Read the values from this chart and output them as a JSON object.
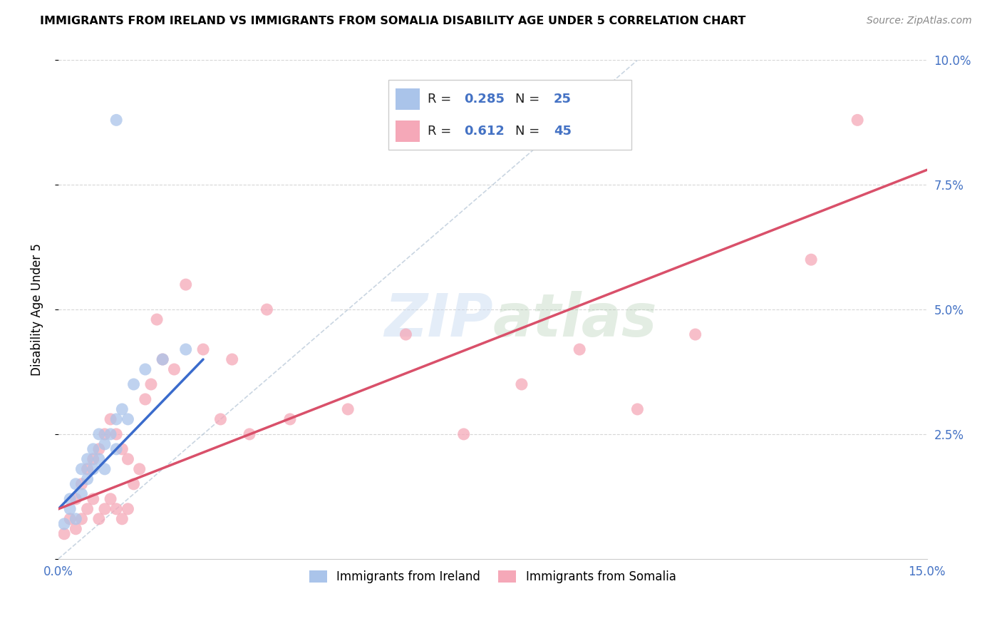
{
  "title": "IMMIGRANTS FROM IRELAND VS IMMIGRANTS FROM SOMALIA DISABILITY AGE UNDER 5 CORRELATION CHART",
  "source": "Source: ZipAtlas.com",
  "ylabel": "Disability Age Under 5",
  "xlim": [
    0.0,
    0.15
  ],
  "ylim": [
    0.0,
    0.1
  ],
  "xtick_vals": [
    0.0,
    0.03,
    0.06,
    0.09,
    0.12,
    0.15
  ],
  "xtick_labels": [
    "0.0%",
    "",
    "",
    "",
    "",
    "15.0%"
  ],
  "ytick_vals": [
    0.0,
    0.025,
    0.05,
    0.075,
    0.1
  ],
  "ytick_labels_right": [
    "",
    "2.5%",
    "5.0%",
    "7.5%",
    "10.0%"
  ],
  "ireland_R": 0.285,
  "ireland_N": 25,
  "somalia_R": 0.612,
  "somalia_N": 45,
  "ireland_color": "#aac4ea",
  "somalia_color": "#f5a8b8",
  "ireland_line_color": "#3a6bcc",
  "somalia_line_color": "#d9506a",
  "diagonal_color": "#b8c8d8",
  "ireland_x": [
    0.001,
    0.002,
    0.002,
    0.003,
    0.003,
    0.004,
    0.004,
    0.005,
    0.005,
    0.006,
    0.006,
    0.007,
    0.007,
    0.008,
    0.008,
    0.009,
    0.01,
    0.01,
    0.011,
    0.012,
    0.013,
    0.015,
    0.018,
    0.022,
    0.01
  ],
  "ireland_y": [
    0.007,
    0.01,
    0.012,
    0.008,
    0.015,
    0.013,
    0.018,
    0.016,
    0.02,
    0.018,
    0.022,
    0.02,
    0.025,
    0.018,
    0.023,
    0.025,
    0.022,
    0.028,
    0.03,
    0.028,
    0.035,
    0.038,
    0.04,
    0.042,
    0.088
  ],
  "somalia_x": [
    0.001,
    0.002,
    0.003,
    0.003,
    0.004,
    0.004,
    0.005,
    0.005,
    0.006,
    0.006,
    0.007,
    0.007,
    0.008,
    0.008,
    0.009,
    0.009,
    0.01,
    0.01,
    0.011,
    0.011,
    0.012,
    0.012,
    0.013,
    0.014,
    0.015,
    0.016,
    0.017,
    0.018,
    0.02,
    0.022,
    0.025,
    0.028,
    0.03,
    0.033,
    0.036,
    0.04,
    0.05,
    0.06,
    0.07,
    0.08,
    0.09,
    0.1,
    0.11,
    0.13,
    0.138
  ],
  "somalia_y": [
    0.005,
    0.008,
    0.006,
    0.012,
    0.008,
    0.015,
    0.01,
    0.018,
    0.012,
    0.02,
    0.008,
    0.022,
    0.01,
    0.025,
    0.012,
    0.028,
    0.01,
    0.025,
    0.008,
    0.022,
    0.01,
    0.02,
    0.015,
    0.018,
    0.032,
    0.035,
    0.048,
    0.04,
    0.038,
    0.055,
    0.042,
    0.028,
    0.04,
    0.025,
    0.05,
    0.028,
    0.03,
    0.045,
    0.025,
    0.035,
    0.042,
    0.03,
    0.045,
    0.06,
    0.088
  ]
}
